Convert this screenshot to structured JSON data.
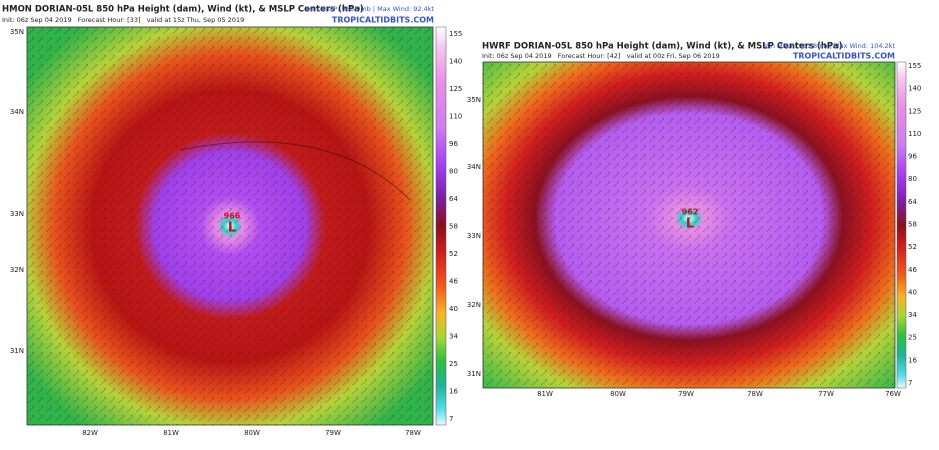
{
  "panels": [
    {
      "title": "HMON DORIAN-05L 850 hPa Height (dam), Wind (kt), & MSLP Centers (hPa)",
      "subtitle": "Init: 06z Sep 04 2019   Forecast Hour: [33]   valid at 15z Thu, Sep 05 2019",
      "stats": "Min MSLP: 965.9mb | Max Wind: 92.4kt",
      "site": "TROPICALTIDBITS.COM",
      "center_pressure": "966",
      "center_symbol": "L",
      "lat_labels": [
        "35N",
        "34N",
        "33N",
        "32N",
        "31N"
      ],
      "lon_labels": [
        "82W",
        "81W",
        "80W",
        "79W",
        "78W"
      ],
      "colorbar_ticks": [
        155,
        140,
        125,
        110,
        96,
        80,
        64,
        58,
        52,
        46,
        40,
        34,
        25,
        16,
        7
      ]
    },
    {
      "title": "HWRF DORIAN-05L 850 hPa Height (dam), Wind (kt), & MSLP Centers (hPa)",
      "subtitle": "Init: 06z Sep 04 2019   Forecast Hour: [42]   valid at 00z Fri, Sep 06 2019",
      "stats": "Min MSLP: 961.8mb | Max Wind: 104.2kt",
      "site": "TROPICALTIDBITS.COM",
      "center_pressure": "962",
      "center_symbol": "L",
      "lat_labels": [
        "35N",
        "34N",
        "33N",
        "32N",
        "31N"
      ],
      "lon_labels": [
        "81W",
        "80W",
        "79W",
        "78W",
        "77W",
        "76W"
      ],
      "colorbar_ticks": [
        155,
        140,
        125,
        110,
        96,
        80,
        64,
        58,
        52,
        46,
        40,
        34,
        25,
        16,
        7
      ]
    }
  ]
}
